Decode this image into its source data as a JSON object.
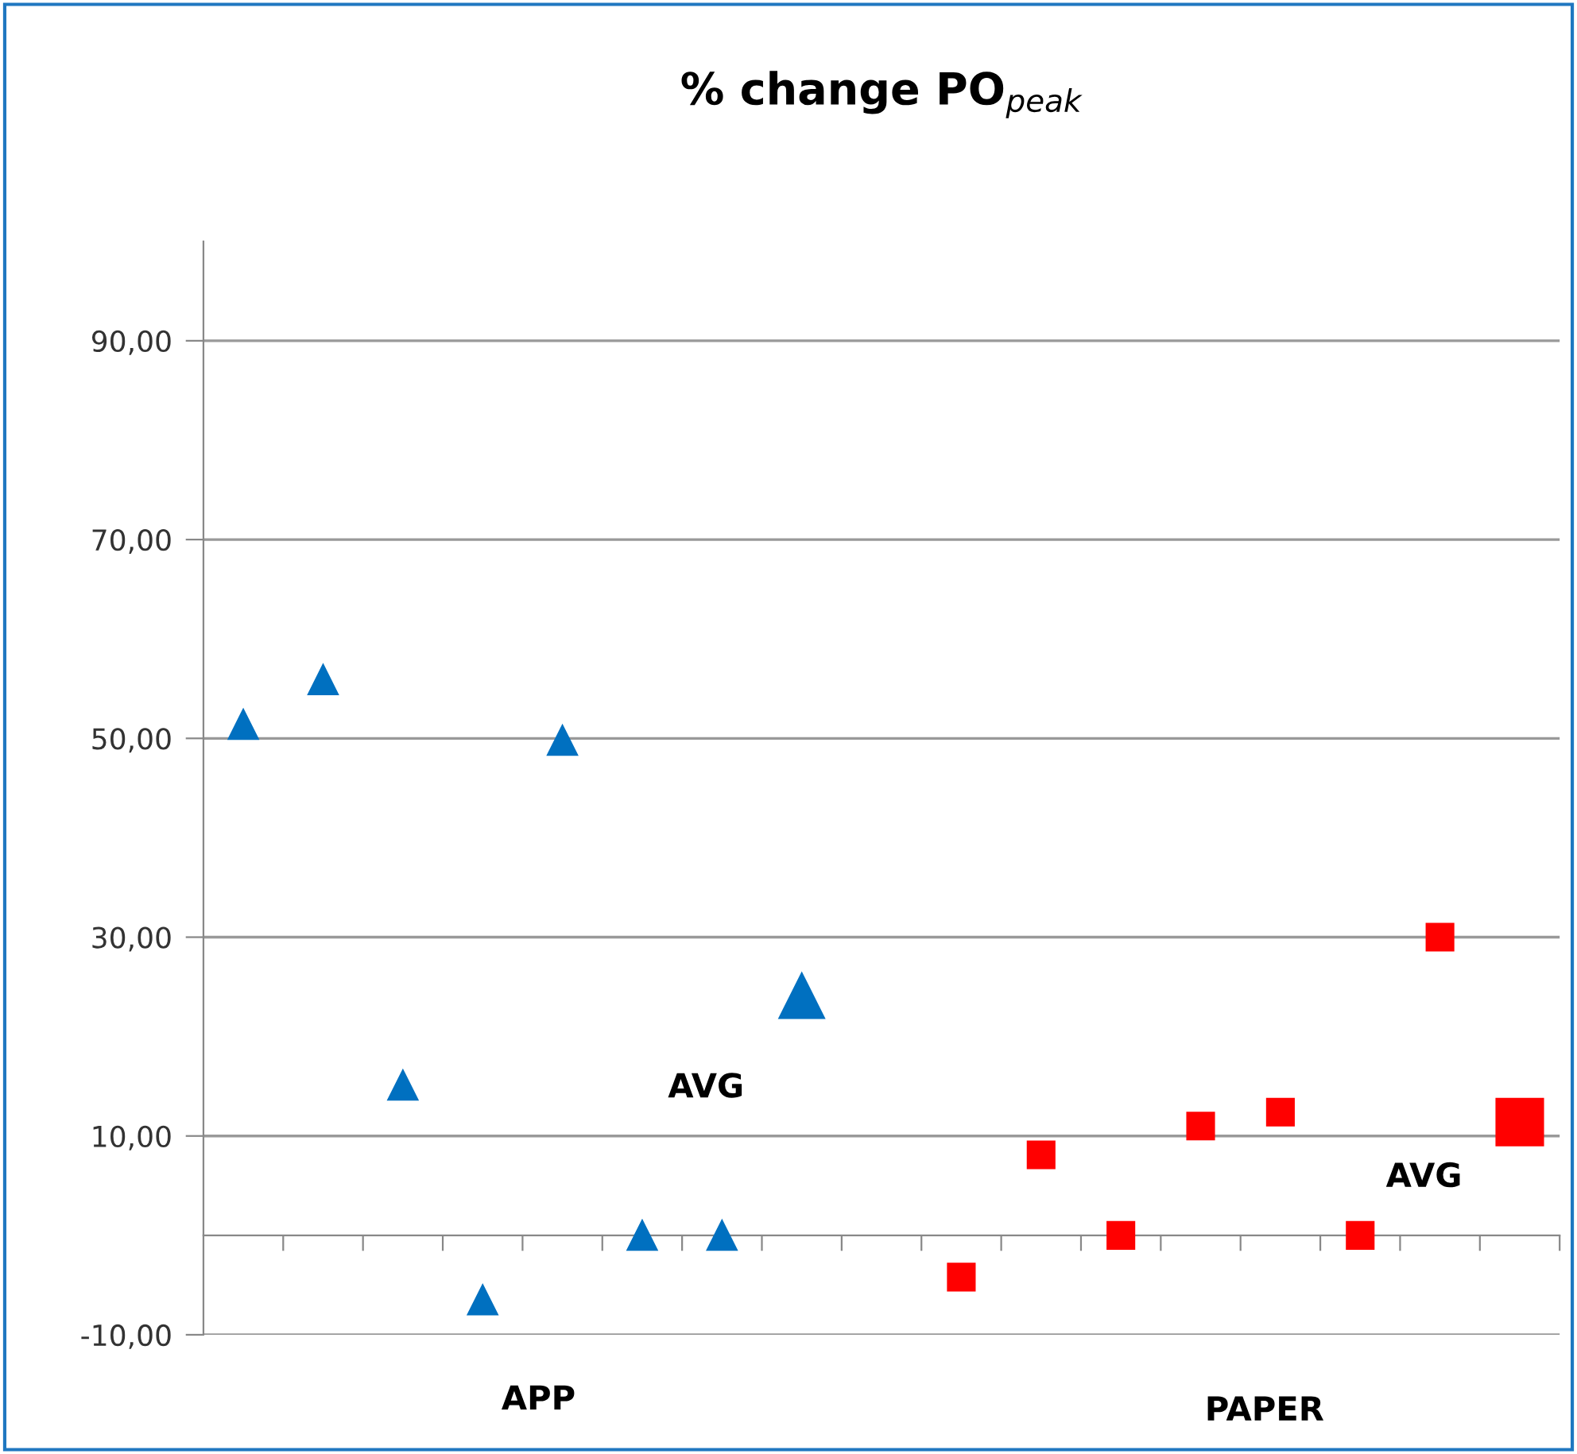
{
  "chart_data": {
    "type": "scatter",
    "title": "% change PO$_{peak}$",
    "categories": [
      null,
      null,
      null,
      null,
      null,
      null,
      null,
      null,
      null,
      null,
      null,
      null,
      null,
      null,
      null,
      null,
      null
    ],
    "series": [
      {
        "color": "#0070c0",
        "marker": "triangle",
        "values": [
          51.4,
          55.9,
          15.1,
          -6.5,
          49.8,
          0,
          0,
          null,
          null,
          null,
          null,
          null,
          null,
          null,
          null,
          null,
          null
        ]
      },
      {
        "color": "#0070c0",
        "marker": "triangle",
        "values": [
          null,
          null,
          null,
          null,
          null,
          null,
          null,
          24.1,
          null,
          null,
          null,
          null,
          null,
          null,
          null,
          null,
          null
        ]
      },
      {
        "color": "#ff0000",
        "marker": "square",
        "values": [
          null,
          null,
          null,
          null,
          null,
          null,
          null,
          null,
          null,
          -4.2,
          8.1,
          0,
          11.0,
          12.4,
          0,
          30.0,
          null
        ]
      },
      {
        "color": "#ff0000",
        "marker": "square",
        "values": [
          null,
          null,
          null,
          null,
          null,
          null,
          null,
          null,
          null,
          null,
          null,
          null,
          null,
          null,
          null,
          null,
          11.4
        ]
      }
    ],
    "ylim": [
      -10,
      100
    ],
    "yticks": [
      {
        "value": -10,
        "label": "-10,00"
      },
      {
        "value": 10,
        "label": "10,00"
      },
      {
        "value": 30,
        "label": "30,00"
      },
      {
        "value": 50,
        "label": "50,00"
      },
      {
        "value": 70,
        "label": "70,00"
      },
      {
        "value": 90,
        "label": "90,00"
      }
    ],
    "grid": "y",
    "legend": false,
    "tick_labels": "y",
    "annotations": [
      "AVG",
      "AVG",
      "APP",
      "PAPER"
    ]
  }
}
